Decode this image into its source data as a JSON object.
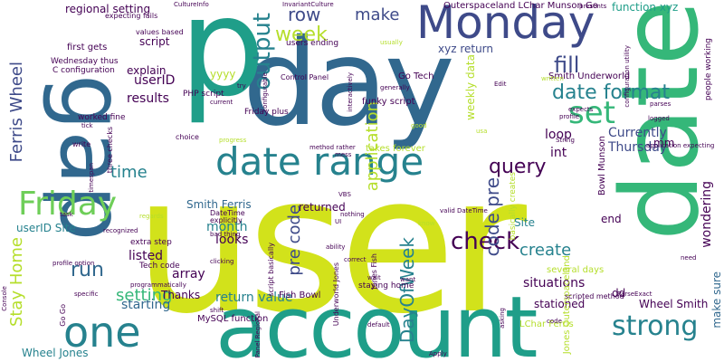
{
  "colors": {
    "background": "#ffffff",
    "purple": "#440154",
    "indigo": "#3e4a89",
    "blue": "#31688e",
    "teal": "#26828e",
    "green": "#1f9e89",
    "emerald": "#35b779",
    "lime": "#6ece58",
    "yellowgreen": "#b5de2b",
    "yellow": "#fde725"
  },
  "words": [
    "user",
    "day",
    "account",
    "date",
    "p",
    "gap",
    "Monday",
    "date range",
    "one",
    "Friday",
    "output",
    "strong",
    "date format",
    "set",
    "check",
    "query",
    "code pre",
    "pre code",
    "DayOfWeek",
    "application",
    "fill",
    "week",
    "run",
    "row",
    "make",
    "Ferris Wheel",
    "Stay Home",
    "setting",
    "time",
    "loop",
    "int",
    "create",
    "Thursday",
    "Currently",
    "situations",
    "results",
    "looks",
    "Site",
    "userID",
    "month",
    "return value",
    "array",
    "starting",
    "Thanks",
    "listed",
    "Smith Ferris",
    "returned",
    "stationed",
    "Wheel Jones",
    "regional setting",
    "function xyz",
    "xyz return",
    "explain",
    "script",
    "userID Site",
    "yyyy",
    "weekly data",
    "Go Tech",
    "funky script",
    "Smith Underworld",
    "Outerspaceland LChar Munson Go",
    "Bowl Munson",
    "LChar Ferris",
    "wondering",
    "make sure",
    "Wheel Smith",
    "dd",
    "mm",
    "end",
    "Jones Outerspaceland",
    "users ending",
    "Control Panel",
    "first gets",
    "Wednesday thus",
    "C configuration",
    "values based",
    "expecting fails",
    "CultureInfo",
    "InvariantCulture",
    "presents",
    "PHP script",
    "worked fine",
    "tick",
    "three checks",
    "Friday plus",
    "current",
    "Tech code",
    "extra step",
    "DateTime",
    "explicitly",
    "MySQL function",
    "Fish Bowl",
    "valid DateTime",
    "basically creates",
    "takes forever",
    "several days",
    "people working",
    "configuration utility",
    "application expecting",
    "logged",
    "script basically",
    "Underworld Jones",
    "Jones Fish",
    "staying home",
    "method rather",
    "mess",
    "nothing",
    "ability",
    "correct",
    "bad thing",
    "clicking",
    "programmatically",
    "profile option",
    "specific",
    "Console",
    "task",
    "timespan",
    "write",
    "shift",
    "scripted method",
    "String",
    "ParseExact",
    "code",
    "asking",
    "default",
    "Apply",
    "need",
    "parses",
    "profile",
    "expects",
    "good",
    "usually",
    "Edit",
    "written",
    "generally",
    "interactively",
    "configurable",
    "try",
    "UI",
    "VBS",
    "choice",
    "progress",
    "regards",
    "wait",
    "know",
    "want",
    "Go Go",
    "recognized",
    "Panel Regional",
    "usa"
  ]
}
